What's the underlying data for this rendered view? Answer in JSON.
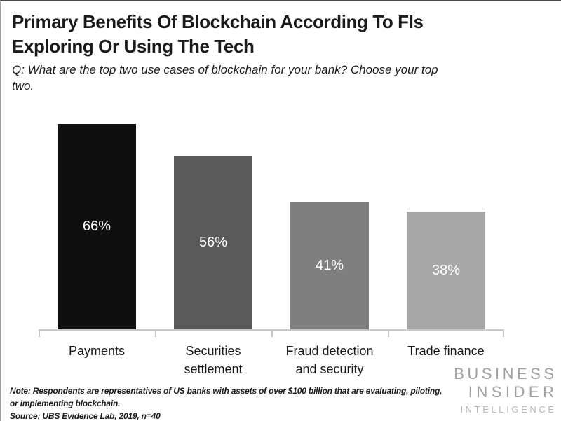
{
  "header": {
    "title": "Primary Benefits Of Blockchain According To FIs Exploring Or Using The Tech",
    "subtitle": "Q: What are the top two use cases of blockchain for your bank? Choose your top two."
  },
  "chart_data": {
    "type": "bar",
    "title": "Primary Benefits Of Blockchain According To FIs Exploring Or Using The Tech",
    "categories": [
      "Payments",
      "Securities settlement",
      "Fraud detection and security",
      "Trade finance"
    ],
    "values": [
      66,
      56,
      41,
      38
    ],
    "value_labels": [
      "66%",
      "56%",
      "41%",
      "38%"
    ],
    "bar_colors": [
      "#0f0f0f",
      "#595959",
      "#7f7f7f",
      "#a7a7a7"
    ],
    "value_label_color": "#ffffff",
    "axis_color": "#c6c6c6",
    "xlabel": "",
    "ylabel": "",
    "ylim": [
      0,
      74
    ],
    "grid": false,
    "legend": false,
    "value_labels_position": "center-of-bar"
  },
  "footer": {
    "note": "Note: Respondents are representatives of US banks with assets of over $100 billion that are evaluating, piloting, or implementing blockchain.",
    "source": "Source: UBS Evidence Lab, 2019, n=40"
  },
  "branding": {
    "line1": "BUSINESS",
    "line2": "INSIDER",
    "line3": "INTELLIGENCE"
  }
}
